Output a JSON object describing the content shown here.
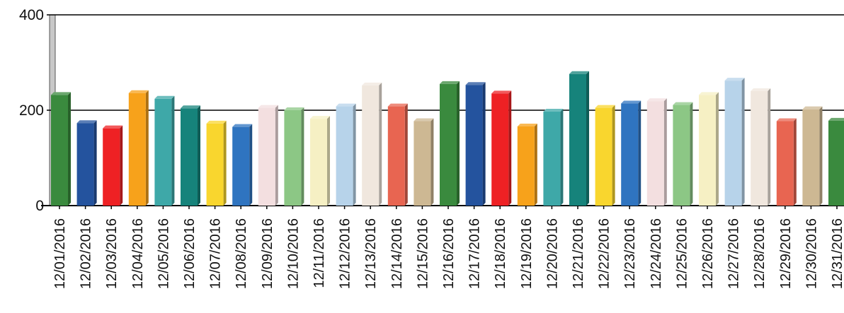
{
  "chart_data": {
    "type": "bar",
    "title": "",
    "xlabel": "",
    "ylabel": "",
    "ylim": [
      0,
      400
    ],
    "yticks": [
      0,
      200,
      400
    ],
    "grid": true,
    "legend": "none",
    "categories": [
      "12/01/2016",
      "12/02/2016",
      "12/03/2016",
      "12/04/2016",
      "12/05/2016",
      "12/06/2016",
      "12/07/2016",
      "12/08/2016",
      "12/09/2016",
      "12/10/2016",
      "12/11/2016",
      "12/12/2016",
      "12/13/2016",
      "12/14/2016",
      "12/15/2016",
      "12/16/2016",
      "12/17/2016",
      "12/18/2016",
      "12/19/2016",
      "12/20/2016",
      "12/21/2016",
      "12/22/2016",
      "12/23/2016",
      "12/24/2016",
      "12/25/2016",
      "12/26/2016",
      "12/27/2016",
      "12/28/2016",
      "12/29/2016",
      "12/30/2016",
      "12/31/2016"
    ],
    "values": [
      232,
      173,
      162,
      236,
      224,
      204,
      172,
      165,
      205,
      200,
      182,
      208,
      252,
      208,
      177,
      255,
      253,
      235,
      166,
      197,
      276,
      205,
      214,
      219,
      211,
      232,
      262,
      240,
      177,
      202,
      178
    ],
    "colors": [
      "#3a8a3e",
      "#24539e",
      "#ee2124",
      "#f7a21b",
      "#3ea8a8",
      "#16837b",
      "#f9d62e",
      "#2f74c0",
      "#f3dfe0",
      "#8cc785",
      "#f6f0c4",
      "#b7d3ea",
      "#f0e7de",
      "#e86551",
      "#cdb893",
      "#3a8a3e",
      "#24539e",
      "#ee2124",
      "#f7a21b",
      "#3ea8a8",
      "#16837b",
      "#f9d62e",
      "#2f74c0",
      "#f3dfe0",
      "#8cc785",
      "#f6f0c4",
      "#b7d3ea",
      "#f0e7de",
      "#e86551",
      "#cdb893",
      "#3a8a3e"
    ]
  }
}
